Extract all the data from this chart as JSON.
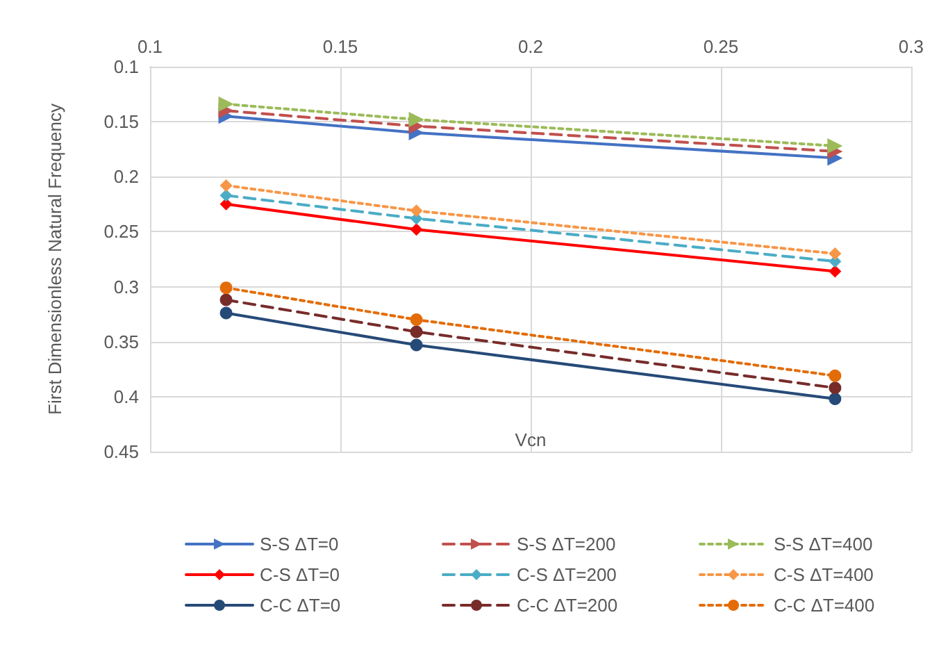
{
  "chart_data": {
    "type": "line",
    "xlabel": "Vcn",
    "ylabel": "First Dimensionless Natural Frequency",
    "xlim": [
      0.1,
      0.3
    ],
    "xticks": [
      0.1,
      0.15,
      0.2,
      0.25,
      0.3
    ],
    "ylim": [
      0.45,
      0.1
    ],
    "yticks": [
      0.1,
      0.15,
      0.2,
      0.25,
      0.3,
      0.35,
      0.4,
      0.45
    ],
    "grid": true,
    "legend": "bottom",
    "x": [
      0.12,
      0.17,
      0.28
    ],
    "series": [
      {
        "name": "S-S ΔT=0",
        "color": "#4472c4",
        "marker": "triangle",
        "line_style": "solid",
        "values": [
          0.145,
          0.16,
          0.183
        ]
      },
      {
        "name": "C-S ΔT=0",
        "color": "#ff0000",
        "marker": "diamond",
        "line_style": "solid",
        "values": [
          0.225,
          0.248,
          0.286
        ]
      },
      {
        "name": "C-C ΔT=0",
        "color": "#264a78",
        "marker": "circle",
        "line_style": "solid",
        "values": [
          0.324,
          0.353,
          0.402
        ]
      },
      {
        "name": "S-S ΔT=200",
        "color": "#c0504d",
        "marker": "triangle",
        "line_style": "dashed",
        "values": [
          0.14,
          0.154,
          0.177
        ]
      },
      {
        "name": "C-S ΔT=200",
        "color": "#4bacc6",
        "marker": "diamond",
        "line_style": "dashed",
        "values": [
          0.217,
          0.238,
          0.277
        ]
      },
      {
        "name": "C-C ΔT=200",
        "color": "#772c2a",
        "marker": "circle",
        "line_style": "dashed",
        "values": [
          0.312,
          0.341,
          0.392
        ]
      },
      {
        "name": "S-S ΔT=400",
        "color": "#9bbb59",
        "marker": "triangle",
        "line_style": "dotted",
        "values": [
          0.134,
          0.148,
          0.172
        ]
      },
      {
        "name": "C-S ΔT=400",
        "color": "#f79646",
        "marker": "diamond",
        "line_style": "dotted",
        "values": [
          0.208,
          0.231,
          0.27
        ]
      },
      {
        "name": "C-C ΔT=400",
        "color": "#e36c09",
        "marker": "circle",
        "line_style": "dotted",
        "values": [
          0.301,
          0.33,
          0.381
        ]
      }
    ]
  }
}
